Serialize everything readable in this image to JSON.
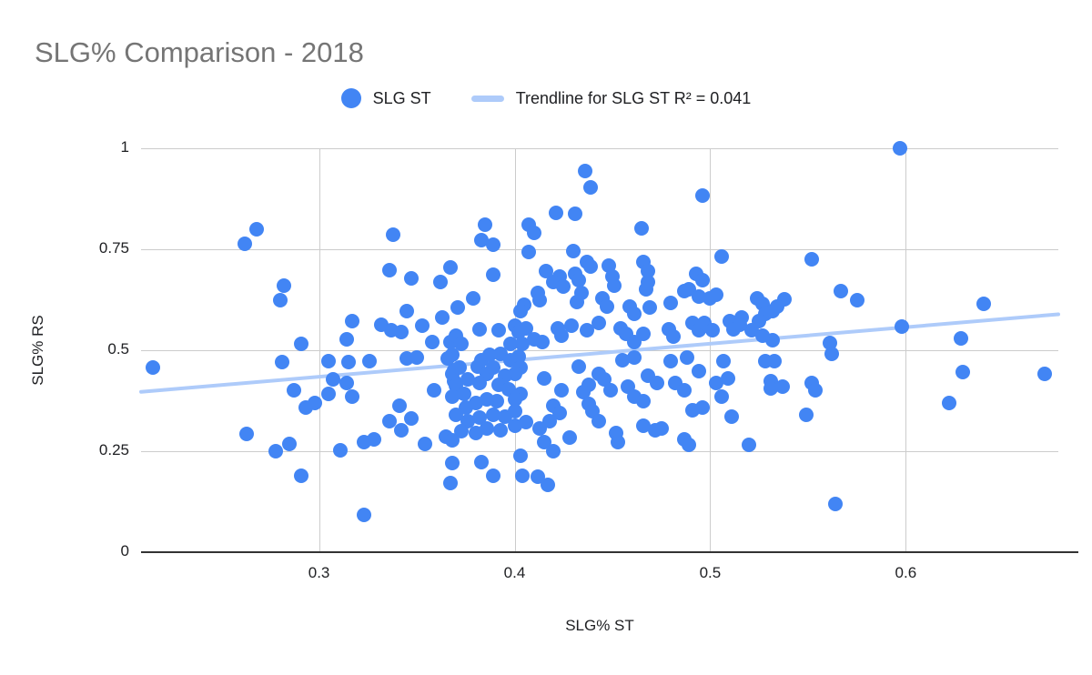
{
  "title": "SLG% Comparison - 2018",
  "legend": {
    "series_label": "SLG ST",
    "trendline_label": "Trendline for SLG ST R² = 0.041"
  },
  "colors": {
    "point": "#4285f4",
    "trendline": "#aecbfa",
    "title_text": "#757575",
    "label_text": "#202124",
    "gridline": "#cccccc",
    "axis_line": "#333333",
    "background": "#ffffff"
  },
  "chart_data": {
    "type": "scatter",
    "title": "SLG% Comparison - 2018",
    "xlabel": "SLG% ST",
    "ylabel": "SLG% RS",
    "xlim": [
      0.209,
      0.678
    ],
    "ylim": [
      0,
      1
    ],
    "x_ticks": [
      {
        "v": 0.3,
        "label": "0.3"
      },
      {
        "v": 0.4,
        "label": "0.4"
      },
      {
        "v": 0.5,
        "label": "0.5"
      },
      {
        "v": 0.6,
        "label": "0.6"
      }
    ],
    "y_ticks": [
      {
        "v": 0,
        "label": "0"
      },
      {
        "v": 0.25,
        "label": "0.25"
      },
      {
        "v": 0.5,
        "label": "0.5"
      },
      {
        "v": 0.75,
        "label": "0.75"
      },
      {
        "v": 1,
        "label": "1"
      }
    ],
    "grid": true,
    "legend_position": "top",
    "trendline": {
      "label": "Trendline for SLG ST R² = 0.041",
      "r_squared": 0.041,
      "x1": 0.209,
      "y1": 0.397,
      "x2": 0.678,
      "y2": 0.589
    },
    "series": [
      {
        "name": "SLG ST",
        "points": [
          [
            0.268,
            0.799
          ],
          [
            0.262,
            0.763
          ],
          [
            0.338,
            0.786
          ],
          [
            0.336,
            0.698
          ],
          [
            0.347,
            0.679
          ],
          [
            0.362,
            0.668
          ],
          [
            0.367,
            0.704
          ],
          [
            0.282,
            0.661
          ],
          [
            0.28,
            0.623
          ],
          [
            0.317,
            0.573
          ],
          [
            0.314,
            0.528
          ],
          [
            0.332,
            0.562
          ],
          [
            0.337,
            0.549
          ],
          [
            0.345,
            0.596
          ],
          [
            0.342,
            0.544
          ],
          [
            0.353,
            0.56
          ],
          [
            0.358,
            0.521
          ],
          [
            0.363,
            0.582
          ],
          [
            0.291,
            0.515
          ],
          [
            0.367,
            0.521
          ],
          [
            0.436,
            0.943
          ],
          [
            0.439,
            0.903
          ],
          [
            0.421,
            0.84
          ],
          [
            0.431,
            0.837
          ],
          [
            0.496,
            0.883
          ],
          [
            0.465,
            0.801
          ],
          [
            0.385,
            0.81
          ],
          [
            0.383,
            0.772
          ],
          [
            0.389,
            0.761
          ],
          [
            0.407,
            0.81
          ],
          [
            0.41,
            0.79
          ],
          [
            0.407,
            0.743
          ],
          [
            0.43,
            0.745
          ],
          [
            0.506,
            0.731
          ],
          [
            0.437,
            0.718
          ],
          [
            0.439,
            0.707
          ],
          [
            0.448,
            0.709
          ],
          [
            0.45,
            0.682
          ],
          [
            0.451,
            0.659
          ],
          [
            0.466,
            0.718
          ],
          [
            0.468,
            0.695
          ],
          [
            0.468,
            0.67
          ],
          [
            0.467,
            0.65
          ],
          [
            0.493,
            0.689
          ],
          [
            0.496,
            0.673
          ],
          [
            0.389,
            0.686
          ],
          [
            0.416,
            0.695
          ],
          [
            0.423,
            0.682
          ],
          [
            0.42,
            0.668
          ],
          [
            0.425,
            0.657
          ],
          [
            0.431,
            0.689
          ],
          [
            0.433,
            0.673
          ],
          [
            0.379,
            0.628
          ],
          [
            0.371,
            0.605
          ],
          [
            0.412,
            0.641
          ],
          [
            0.413,
            0.623
          ],
          [
            0.405,
            0.612
          ],
          [
            0.403,
            0.596
          ],
          [
            0.434,
            0.641
          ],
          [
            0.432,
            0.619
          ],
          [
            0.445,
            0.628
          ],
          [
            0.447,
            0.609
          ],
          [
            0.459,
            0.607
          ],
          [
            0.461,
            0.589
          ],
          [
            0.469,
            0.605
          ],
          [
            0.48,
            0.616
          ],
          [
            0.487,
            0.646
          ],
          [
            0.489,
            0.65
          ],
          [
            0.494,
            0.634
          ],
          [
            0.5,
            0.628
          ],
          [
            0.503,
            0.637
          ],
          [
            0.524,
            0.628
          ],
          [
            0.527,
            0.614
          ],
          [
            0.528,
            0.589
          ],
          [
            0.37,
            0.537
          ],
          [
            0.373,
            0.515
          ],
          [
            0.382,
            0.551
          ],
          [
            0.392,
            0.549
          ],
          [
            0.4,
            0.56
          ],
          [
            0.402,
            0.544
          ],
          [
            0.406,
            0.555
          ],
          [
            0.398,
            0.515
          ],
          [
            0.404,
            0.515
          ],
          [
            0.41,
            0.528
          ],
          [
            0.414,
            0.521
          ],
          [
            0.422,
            0.555
          ],
          [
            0.424,
            0.535
          ],
          [
            0.429,
            0.56
          ],
          [
            0.437,
            0.549
          ],
          [
            0.443,
            0.567
          ],
          [
            0.454,
            0.555
          ],
          [
            0.457,
            0.54
          ],
          [
            0.461,
            0.521
          ],
          [
            0.466,
            0.54
          ],
          [
            0.479,
            0.551
          ],
          [
            0.481,
            0.533
          ],
          [
            0.491,
            0.567
          ],
          [
            0.494,
            0.549
          ],
          [
            0.497,
            0.567
          ],
          [
            0.501,
            0.549
          ],
          [
            0.51,
            0.571
          ],
          [
            0.512,
            0.551
          ],
          [
            0.516,
            0.582
          ],
          [
            0.521,
            0.549
          ],
          [
            0.515,
            0.562
          ],
          [
            0.597,
            1.0
          ],
          [
            0.552,
            0.725
          ],
          [
            0.567,
            0.646
          ],
          [
            0.575,
            0.625
          ],
          [
            0.64,
            0.614
          ],
          [
            0.538,
            0.627
          ],
          [
            0.532,
            0.596
          ],
          [
            0.534,
            0.607
          ],
          [
            0.525,
            0.573
          ],
          [
            0.598,
            0.558
          ],
          [
            0.628,
            0.53
          ],
          [
            0.561,
            0.519
          ],
          [
            0.532,
            0.524
          ],
          [
            0.527,
            0.537
          ],
          [
            0.215,
            0.458
          ],
          [
            0.263,
            0.293
          ],
          [
            0.278,
            0.251
          ],
          [
            0.285,
            0.269
          ],
          [
            0.287,
            0.402
          ],
          [
            0.293,
            0.359
          ],
          [
            0.298,
            0.37
          ],
          [
            0.291,
            0.19
          ],
          [
            0.281,
            0.47
          ],
          [
            0.305,
            0.474
          ],
          [
            0.307,
            0.427
          ],
          [
            0.305,
            0.393
          ],
          [
            0.315,
            0.47
          ],
          [
            0.314,
            0.42
          ],
          [
            0.317,
            0.386
          ],
          [
            0.311,
            0.253
          ],
          [
            0.323,
            0.273
          ],
          [
            0.328,
            0.28
          ],
          [
            0.345,
            0.479
          ],
          [
            0.35,
            0.481
          ],
          [
            0.368,
            0.488
          ],
          [
            0.341,
            0.363
          ],
          [
            0.347,
            0.33
          ],
          [
            0.336,
            0.325
          ],
          [
            0.342,
            0.302
          ],
          [
            0.354,
            0.269
          ],
          [
            0.365,
            0.287
          ],
          [
            0.359,
            0.4
          ],
          [
            0.369,
            0.424
          ],
          [
            0.369,
            0.451
          ],
          [
            0.366,
            0.479
          ],
          [
            0.323,
            0.093
          ],
          [
            0.326,
            0.472
          ],
          [
            0.368,
            0.442
          ],
          [
            0.372,
            0.458
          ],
          [
            0.37,
            0.413
          ],
          [
            0.368,
            0.386
          ],
          [
            0.374,
            0.393
          ],
          [
            0.376,
            0.427
          ],
          [
            0.381,
            0.46
          ],
          [
            0.383,
            0.476
          ],
          [
            0.386,
            0.442
          ],
          [
            0.382,
            0.42
          ],
          [
            0.389,
            0.458
          ],
          [
            0.387,
            0.488
          ],
          [
            0.393,
            0.492
          ],
          [
            0.398,
            0.476
          ],
          [
            0.402,
            0.485
          ],
          [
            0.403,
            0.458
          ],
          [
            0.4,
            0.442
          ],
          [
            0.395,
            0.436
          ],
          [
            0.392,
            0.415
          ],
          [
            0.397,
            0.404
          ],
          [
            0.403,
            0.393
          ],
          [
            0.4,
            0.379
          ],
          [
            0.391,
            0.375
          ],
          [
            0.386,
            0.379
          ],
          [
            0.38,
            0.37
          ],
          [
            0.375,
            0.359
          ],
          [
            0.37,
            0.341
          ],
          [
            0.376,
            0.325
          ],
          [
            0.382,
            0.334
          ],
          [
            0.389,
            0.341
          ],
          [
            0.395,
            0.336
          ],
          [
            0.386,
            0.307
          ],
          [
            0.38,
            0.296
          ],
          [
            0.373,
            0.3
          ],
          [
            0.368,
            0.278
          ],
          [
            0.393,
            0.302
          ],
          [
            0.4,
            0.312
          ],
          [
            0.406,
            0.323
          ],
          [
            0.4,
            0.348
          ],
          [
            0.415,
            0.431
          ],
          [
            0.424,
            0.402
          ],
          [
            0.42,
            0.363
          ],
          [
            0.423,
            0.345
          ],
          [
            0.418,
            0.325
          ],
          [
            0.413,
            0.307
          ],
          [
            0.415,
            0.273
          ],
          [
            0.42,
            0.251
          ],
          [
            0.428,
            0.284
          ],
          [
            0.433,
            0.46
          ],
          [
            0.438,
            0.415
          ],
          [
            0.435,
            0.397
          ],
          [
            0.443,
            0.442
          ],
          [
            0.446,
            0.427
          ],
          [
            0.438,
            0.368
          ],
          [
            0.44,
            0.348
          ],
          [
            0.443,
            0.325
          ],
          [
            0.452,
            0.296
          ],
          [
            0.453,
            0.273
          ],
          [
            0.449,
            0.402
          ],
          [
            0.455,
            0.476
          ],
          [
            0.461,
            0.483
          ],
          [
            0.458,
            0.409
          ],
          [
            0.461,
            0.386
          ],
          [
            0.466,
            0.375
          ],
          [
            0.468,
            0.438
          ],
          [
            0.473,
            0.42
          ],
          [
            0.466,
            0.312
          ],
          [
            0.472,
            0.302
          ],
          [
            0.475,
            0.307
          ],
          [
            0.48,
            0.472
          ],
          [
            0.488,
            0.481
          ],
          [
            0.482,
            0.42
          ],
          [
            0.487,
            0.402
          ],
          [
            0.494,
            0.449
          ],
          [
            0.496,
            0.359
          ],
          [
            0.491,
            0.352
          ],
          [
            0.487,
            0.28
          ],
          [
            0.489,
            0.266
          ],
          [
            0.507,
            0.472
          ],
          [
            0.509,
            0.431
          ],
          [
            0.503,
            0.42
          ],
          [
            0.506,
            0.386
          ],
          [
            0.511,
            0.336
          ],
          [
            0.52,
            0.266
          ],
          [
            0.528,
            0.472
          ],
          [
            0.531,
            0.424
          ],
          [
            0.368,
            0.221
          ],
          [
            0.383,
            0.223
          ],
          [
            0.389,
            0.19
          ],
          [
            0.367,
            0.172
          ],
          [
            0.403,
            0.239
          ],
          [
            0.404,
            0.19
          ],
          [
            0.412,
            0.187
          ],
          [
            0.417,
            0.167
          ],
          [
            0.562,
            0.492
          ],
          [
            0.533,
            0.472
          ],
          [
            0.531,
            0.406
          ],
          [
            0.537,
            0.411
          ],
          [
            0.552,
            0.42
          ],
          [
            0.554,
            0.402
          ],
          [
            0.549,
            0.339
          ],
          [
            0.629,
            0.447
          ],
          [
            0.671,
            0.442
          ],
          [
            0.622,
            0.37
          ],
          [
            0.564,
            0.12
          ]
        ]
      }
    ]
  }
}
